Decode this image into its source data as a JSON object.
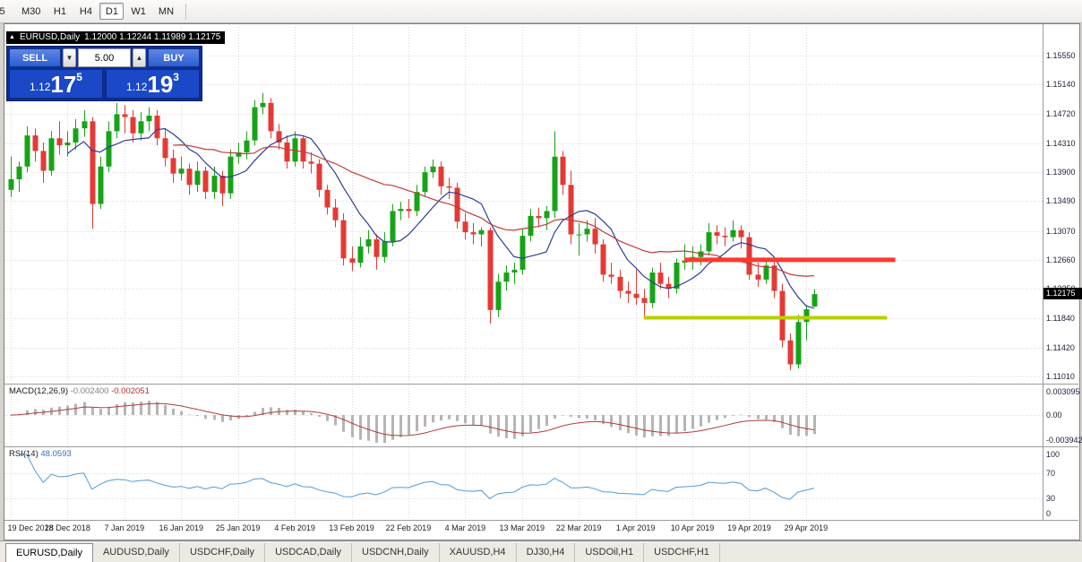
{
  "toolbar": {
    "timeframes": [
      "5",
      "M30",
      "H1",
      "H4",
      "D1",
      "W1",
      "MN"
    ],
    "active": "D1"
  },
  "chart": {
    "symbol": "EURUSD,Daily",
    "ohlc": "1.12000 1.12244 1.11989 1.12175"
  },
  "one_click": {
    "sell_label": "SELL",
    "buy_label": "BUY",
    "volume": "5.00",
    "sell_base": "1.12",
    "sell_pips": "17",
    "sell_sup": "5",
    "buy_base": "1.12",
    "buy_pips": "19",
    "buy_sup": "3"
  },
  "current_price": "1.12175",
  "price_axis": [
    "1.15550",
    "1.15140",
    "1.14720",
    "1.14310",
    "1.13900",
    "1.13490",
    "1.13070",
    "1.12660",
    "1.12250",
    "1.11840",
    "1.11420",
    "1.11010"
  ],
  "macd": {
    "name": "MACD(12,26,9)",
    "value1": "-0.002400",
    "value2": "-0.002051",
    "axis_labels": [
      "0.003095",
      "0.00",
      "-0.003942"
    ],
    "params": {
      "fast": 12,
      "slow": 26,
      "signal": 9
    }
  },
  "rsi": {
    "name": "RSI(14)",
    "value": "48.0593",
    "axis_labels": [
      "100",
      "70",
      "30",
      "0"
    ],
    "period": 14,
    "levels": [
      70,
      30
    ]
  },
  "tabs": [
    "EURUSD,Daily",
    "AUDUSD,Daily",
    "USDCHF,Daily",
    "USDCAD,Daily",
    "USDCNH,Daily",
    "XAUUSD,H4",
    "DJ30,H4",
    "USDOil,H1",
    "USDCHF,H1"
  ],
  "tabs_active_index": 0,
  "chart_data": {
    "type": "candlestick",
    "symbol": "EURUSD",
    "timeframe": "Daily",
    "ylim": [
      1.10946,
      1.15956
    ],
    "label_every": 7,
    "date_labels": [
      "19 Dec 2018",
      "28 Dec 2018",
      "7 Jan 2019",
      "16 Jan 2019",
      "25 Jan 2019",
      "4 Feb 2019",
      "13 Feb 2019",
      "22 Feb 2019",
      "4 Mar 2019",
      "13 Mar 2019",
      "22 Mar 2019",
      "1 Apr 2019",
      "10 Apr 2019",
      "19 Apr 2019",
      "29 Apr 2019"
    ],
    "up_color": "#17a317",
    "down_color": "#e53935",
    "ma": [
      {
        "period": 8,
        "color": "#2c3e94"
      },
      {
        "period": 21,
        "color": "#c03a3a"
      }
    ],
    "objects": {
      "resistance": {
        "price": 1.1266,
        "from_index": 83,
        "to_index": 109,
        "color": "#fb3a2e",
        "width": 5
      },
      "support": {
        "price": 1.1184,
        "from_index": 78,
        "to_index": 108,
        "color": "#b8cf00",
        "width": 4
      }
    },
    "macd_colors": {
      "histogram": "#b5b5b5",
      "signal": "#b23b3b"
    },
    "rsi_color": "#4f9bd5",
    "candles": [
      [
        1.1365,
        1.1412,
        1.1355,
        1.138
      ],
      [
        1.138,
        1.1405,
        1.1362,
        1.1398
      ],
      [
        1.1398,
        1.1455,
        1.139,
        1.1442
      ],
      [
        1.1442,
        1.1452,
        1.1405,
        1.142
      ],
      [
        1.142,
        1.1432,
        1.1375,
        1.1392
      ],
      [
        1.1392,
        1.1448,
        1.1385,
        1.1438
      ],
      [
        1.1438,
        1.1462,
        1.1415,
        1.1428
      ],
      [
        1.1428,
        1.1448,
        1.1412,
        1.1432
      ],
      [
        1.1432,
        1.1465,
        1.1422,
        1.1452
      ],
      [
        1.1452,
        1.1478,
        1.144,
        1.1462
      ],
      [
        1.1462,
        1.1468,
        1.131,
        1.1345
      ],
      [
        1.1345,
        1.1412,
        1.1338,
        1.1398
      ],
      [
        1.1398,
        1.1462,
        1.139,
        1.1448
      ],
      [
        1.1448,
        1.1488,
        1.1438,
        1.1472
      ],
      [
        1.1472,
        1.1485,
        1.1445,
        1.1468
      ],
      [
        1.1468,
        1.1478,
        1.1432,
        1.1445
      ],
      [
        1.1445,
        1.1475,
        1.1435,
        1.1462
      ],
      [
        1.1462,
        1.1482,
        1.1448,
        1.147
      ],
      [
        1.147,
        1.1478,
        1.1428,
        1.1438
      ],
      [
        1.1438,
        1.1452,
        1.1398,
        1.141
      ],
      [
        1.141,
        1.1422,
        1.1375,
        1.1388
      ],
      [
        1.1388,
        1.1412,
        1.1378,
        1.1395
      ],
      [
        1.1395,
        1.1402,
        1.1358,
        1.1372
      ],
      [
        1.1372,
        1.1405,
        1.1362,
        1.1392
      ],
      [
        1.1392,
        1.1398,
        1.1352,
        1.1362
      ],
      [
        1.1362,
        1.1398,
        1.1352,
        1.1385
      ],
      [
        1.1385,
        1.1392,
        1.1342,
        1.136
      ],
      [
        1.136,
        1.1422,
        1.1352,
        1.1412
      ],
      [
        1.1412,
        1.1432,
        1.1402,
        1.1418
      ],
      [
        1.1418,
        1.1448,
        1.1408,
        1.1435
      ],
      [
        1.1435,
        1.1492,
        1.1428,
        1.1482
      ],
      [
        1.1482,
        1.1502,
        1.1472,
        1.1488
      ],
      [
        1.1488,
        1.1495,
        1.1438,
        1.1448
      ],
      [
        1.1448,
        1.1458,
        1.1422,
        1.1432
      ],
      [
        1.1432,
        1.1442,
        1.1395,
        1.1405
      ],
      [
        1.1405,
        1.1448,
        1.1398,
        1.1438
      ],
      [
        1.1438,
        1.1442,
        1.1395,
        1.1405
      ],
      [
        1.1405,
        1.1418,
        1.1388,
        1.1402
      ],
      [
        1.1402,
        1.1408,
        1.1355,
        1.1365
      ],
      [
        1.1365,
        1.1372,
        1.133,
        1.134
      ],
      [
        1.134,
        1.1352,
        1.1312,
        1.1322
      ],
      [
        1.1322,
        1.1332,
        1.1258,
        1.1268
      ],
      [
        1.1268,
        1.1285,
        1.125,
        1.1262
      ],
      [
        1.1262,
        1.1298,
        1.1255,
        1.1285
      ],
      [
        1.1285,
        1.1308,
        1.1275,
        1.1295
      ],
      [
        1.1295,
        1.1302,
        1.1252,
        1.127
      ],
      [
        1.127,
        1.1305,
        1.1262,
        1.1292
      ],
      [
        1.1292,
        1.1345,
        1.1285,
        1.1335
      ],
      [
        1.1335,
        1.1348,
        1.1322,
        1.1338
      ],
      [
        1.1338,
        1.1352,
        1.1325,
        1.1335
      ],
      [
        1.1335,
        1.1372,
        1.1328,
        1.1362
      ],
      [
        1.1362,
        1.1398,
        1.1355,
        1.139
      ],
      [
        1.139,
        1.1408,
        1.1382,
        1.1398
      ],
      [
        1.1398,
        1.1405,
        1.1358,
        1.137
      ],
      [
        1.137,
        1.1382,
        1.1352,
        1.1368
      ],
      [
        1.1368,
        1.1375,
        1.131,
        1.132
      ],
      [
        1.132,
        1.1332,
        1.1295,
        1.1305
      ],
      [
        1.1305,
        1.1318,
        1.1288,
        1.1302
      ],
      [
        1.1302,
        1.1312,
        1.1285,
        1.1308
      ],
      [
        1.1308,
        1.1312,
        1.1176,
        1.1195
      ],
      [
        1.1195,
        1.1246,
        1.1185,
        1.1235
      ],
      [
        1.1235,
        1.1258,
        1.1222,
        1.1248
      ],
      [
        1.1248,
        1.1262,
        1.1232,
        1.1252
      ],
      [
        1.1252,
        1.131,
        1.1245,
        1.13
      ],
      [
        1.13,
        1.1338,
        1.1292,
        1.1328
      ],
      [
        1.1328,
        1.134,
        1.1312,
        1.1325
      ],
      [
        1.1325,
        1.1342,
        1.1308,
        1.1335
      ],
      [
        1.1335,
        1.1448,
        1.1325,
        1.1412
      ],
      [
        1.1412,
        1.142,
        1.1358,
        1.1372
      ],
      [
        1.1372,
        1.1392,
        1.1288,
        1.1302
      ],
      [
        1.1302,
        1.1318,
        1.1272,
        1.1302
      ],
      [
        1.1302,
        1.1322,
        1.1292,
        1.131
      ],
      [
        1.131,
        1.1325,
        1.1275,
        1.1288
      ],
      [
        1.1288,
        1.1295,
        1.1235,
        1.1245
      ],
      [
        1.1245,
        1.1262,
        1.1232,
        1.1242
      ],
      [
        1.1242,
        1.1252,
        1.1212,
        1.1222
      ],
      [
        1.1222,
        1.1235,
        1.1205,
        1.1218
      ],
      [
        1.1218,
        1.1252,
        1.1202,
        1.1212
      ],
      [
        1.1212,
        1.1225,
        1.1183,
        1.1205
      ],
      [
        1.1205,
        1.1255,
        1.1198,
        1.1248
      ],
      [
        1.1248,
        1.1262,
        1.1225,
        1.1232
      ],
      [
        1.1232,
        1.1242,
        1.1212,
        1.1225
      ],
      [
        1.1225,
        1.1268,
        1.1218,
        1.1262
      ],
      [
        1.1262,
        1.1288,
        1.1252,
        1.1265
      ],
      [
        1.1265,
        1.1285,
        1.1252,
        1.127
      ],
      [
        1.127,
        1.1288,
        1.1258,
        1.1278
      ],
      [
        1.1278,
        1.1318,
        1.1272,
        1.1305
      ],
      [
        1.1305,
        1.1315,
        1.1288,
        1.13
      ],
      [
        1.13,
        1.1312,
        1.1285,
        1.1298
      ],
      [
        1.1298,
        1.1322,
        1.1292,
        1.1308
      ],
      [
        1.1308,
        1.1315,
        1.1282,
        1.1298
      ],
      [
        1.1298,
        1.1305,
        1.1238,
        1.1245
      ],
      [
        1.1245,
        1.1262,
        1.1228,
        1.1238
      ],
      [
        1.1238,
        1.1268,
        1.1232,
        1.1258
      ],
      [
        1.1258,
        1.1265,
        1.1212,
        1.1222
      ],
      [
        1.1222,
        1.1232,
        1.1142,
        1.1152
      ],
      [
        1.1152,
        1.1162,
        1.111,
        1.1118
      ],
      [
        1.1118,
        1.1188,
        1.1112,
        1.1178
      ],
      [
        1.1178,
        1.1202,
        1.1152,
        1.1196
      ],
      [
        1.12,
        1.12244,
        1.11989,
        1.12175
      ]
    ]
  }
}
